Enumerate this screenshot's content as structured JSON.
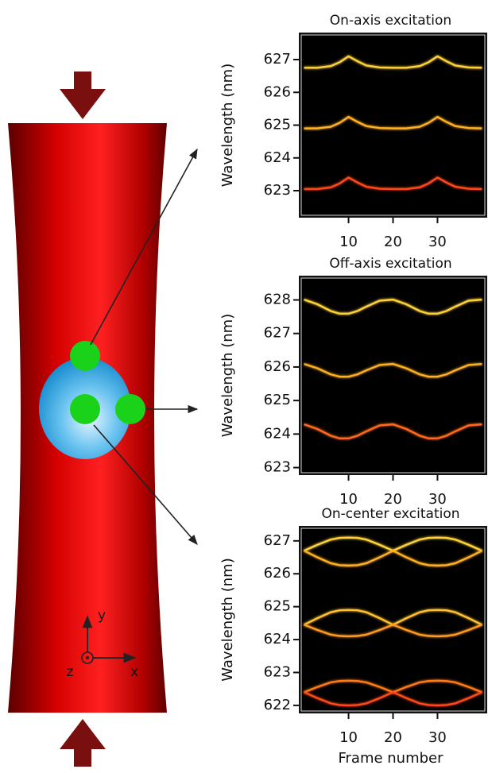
{
  "schematic_labels": {
    "x": "x",
    "y": "y",
    "z": "z"
  },
  "chart_data": [
    {
      "type": "line",
      "title": "On-axis excitation",
      "ylabel": "Wavelength (nm)",
      "x": [
        0,
        3,
        6,
        8,
        10,
        12,
        14,
        17,
        20,
        23,
        26,
        28,
        30,
        32,
        34,
        37,
        40
      ],
      "series": [
        {
          "color": "#ffd23a",
          "values": [
            626.75,
            626.75,
            626.8,
            626.92,
            627.1,
            626.95,
            626.82,
            626.76,
            626.75,
            626.75,
            626.8,
            626.92,
            627.1,
            626.95,
            626.82,
            626.76,
            626.75
          ]
        },
        {
          "color": "#ffb020",
          "values": [
            624.9,
            624.9,
            624.95,
            625.07,
            625.25,
            625.1,
            624.97,
            624.91,
            624.9,
            624.9,
            624.95,
            625.07,
            625.25,
            625.1,
            624.97,
            624.91,
            624.9
          ]
        },
        {
          "color": "#ff4a1a",
          "values": [
            623.05,
            623.05,
            623.1,
            623.22,
            623.4,
            623.25,
            623.12,
            623.06,
            623.05,
            623.05,
            623.1,
            623.22,
            623.4,
            623.25,
            623.12,
            623.06,
            623.05
          ]
        }
      ],
      "xlim": [
        -1,
        41
      ],
      "ylim": [
        622.2,
        627.8
      ],
      "xticks": [
        10,
        20,
        30
      ],
      "yticks": [
        623,
        624,
        625,
        626,
        627
      ]
    },
    {
      "type": "line",
      "title": "Off-axis excitation",
      "ylabel": "Wavelength (nm)",
      "x": [
        0,
        3,
        6,
        8,
        10,
        12,
        14,
        17,
        20,
        23,
        26,
        28,
        30,
        32,
        34,
        37,
        40
      ],
      "series": [
        {
          "color": "#ffd23a",
          "values": [
            628.01,
            627.87,
            627.67,
            627.59,
            627.59,
            627.67,
            627.8,
            627.98,
            628.01,
            627.87,
            627.67,
            627.59,
            627.59,
            627.67,
            627.8,
            627.98,
            628.01
          ]
        },
        {
          "color": "#ffb020",
          "values": [
            626.09,
            625.96,
            625.78,
            625.71,
            625.71,
            625.78,
            625.9,
            626.06,
            626.09,
            625.96,
            625.78,
            625.71,
            625.71,
            625.78,
            625.9,
            626.06,
            626.09
          ]
        },
        {
          "color": "#ff6a1a",
          "values": [
            624.29,
            624.15,
            623.95,
            623.87,
            623.87,
            623.95,
            624.08,
            624.26,
            624.29,
            624.15,
            623.95,
            623.87,
            623.87,
            623.95,
            624.08,
            624.26,
            624.29
          ]
        }
      ],
      "xlim": [
        -1,
        41
      ],
      "ylim": [
        622.8,
        628.7
      ],
      "xticks": [
        10,
        20,
        30
      ],
      "yticks": [
        623,
        624,
        625,
        626,
        627,
        628
      ]
    },
    {
      "type": "line",
      "title": "On-center excitation",
      "ylabel": "Wavelength (nm)",
      "xlabel": "Frame number",
      "x": [
        0,
        3,
        6,
        8,
        10,
        12,
        14,
        17,
        20,
        23,
        26,
        28,
        30,
        32,
        34,
        37,
        40
      ],
      "series": [
        {
          "color": "#ffd23a",
          "values": [
            626.7,
            626.88,
            627.04,
            627.09,
            627.1,
            627.09,
            627.04,
            626.88,
            626.7,
            626.88,
            627.04,
            627.09,
            627.1,
            627.09,
            627.04,
            626.88,
            626.7
          ]
        },
        {
          "color": "#ffb020",
          "values": [
            626.7,
            626.5,
            626.32,
            626.26,
            626.25,
            626.26,
            626.32,
            626.5,
            626.7,
            626.5,
            626.32,
            626.26,
            626.25,
            626.26,
            626.32,
            626.5,
            626.7
          ]
        },
        {
          "color": "#ffc030",
          "values": [
            624.45,
            624.65,
            624.83,
            624.89,
            624.9,
            624.89,
            624.83,
            624.65,
            624.45,
            624.65,
            624.83,
            624.89,
            624.9,
            624.89,
            624.83,
            624.65,
            624.45
          ]
        },
        {
          "color": "#ff9a20",
          "values": [
            624.45,
            624.29,
            624.15,
            624.11,
            624.1,
            624.11,
            624.15,
            624.29,
            624.45,
            624.29,
            624.15,
            624.11,
            624.1,
            624.11,
            624.15,
            624.29,
            624.45
          ]
        },
        {
          "color": "#ff7a1a",
          "values": [
            622.4,
            622.56,
            622.7,
            622.74,
            622.75,
            622.74,
            622.7,
            622.56,
            622.4,
            622.56,
            622.7,
            622.74,
            622.75,
            622.74,
            622.7,
            622.56,
            622.4
          ]
        },
        {
          "color": "#ff4a1a",
          "values": [
            622.4,
            622.22,
            622.06,
            622.01,
            622.0,
            622.01,
            622.06,
            622.22,
            622.4,
            622.22,
            622.06,
            622.01,
            622.0,
            622.01,
            622.06,
            622.22,
            622.4
          ]
        }
      ],
      "xlim": [
        -1,
        41
      ],
      "ylim": [
        621.78,
        627.43
      ],
      "xticks": [
        10,
        20,
        30
      ],
      "yticks": [
        622,
        623,
        624,
        625,
        626,
        627
      ]
    }
  ]
}
